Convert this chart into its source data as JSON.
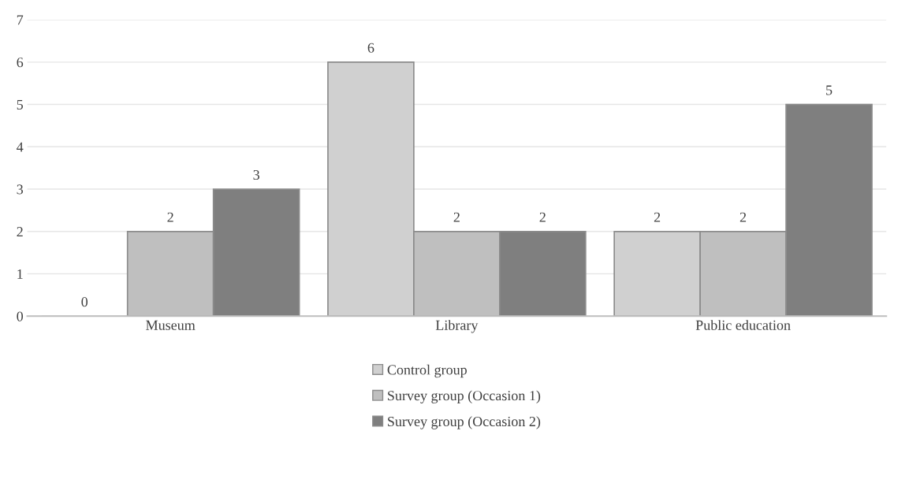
{
  "chart_data": {
    "type": "bar",
    "categories": [
      "Museum",
      "Library",
      "Public education"
    ],
    "series": [
      {
        "name": "Control group",
        "color": "#d0d0d0",
        "values": [
          0,
          6,
          2
        ]
      },
      {
        "name": "Survey group (Occasion 1)",
        "color": "#bfbfbf",
        "values": [
          2,
          2,
          2
        ]
      },
      {
        "name": "Survey group (Occasion 2)",
        "color": "#7f7f7f",
        "values": [
          3,
          2,
          5
        ]
      }
    ],
    "ylim": [
      0,
      7
    ],
    "yticks": [
      0,
      1,
      2,
      3,
      4,
      5,
      6,
      7
    ],
    "grid": "y",
    "data_labels": true,
    "legend": "bottom"
  }
}
